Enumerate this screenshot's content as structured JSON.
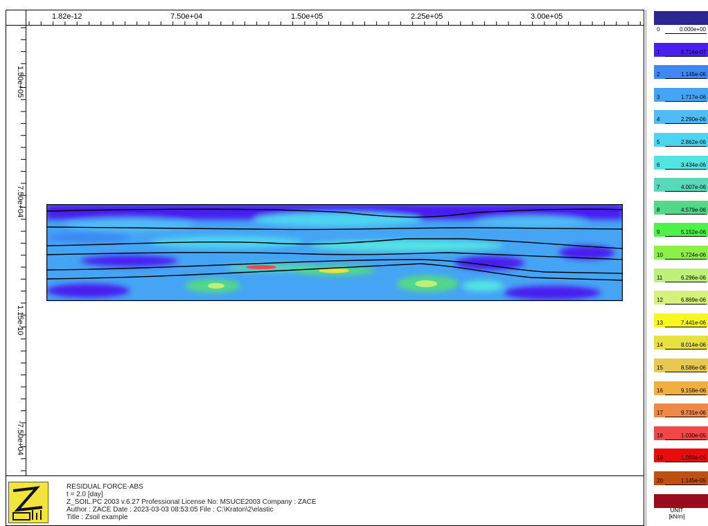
{
  "window": {
    "title": "Zsoil example"
  },
  "x_axis": {
    "ticks": [
      "1.82e-12",
      "7.50e+04",
      "1.50e+05",
      "2.25e+05",
      "3.00e+05"
    ]
  },
  "y_axis": {
    "ticks": [
      "1.50e+05",
      "7.50e+04",
      "1.15e-10",
      "-7.50e+04"
    ]
  },
  "info": {
    "result": "RESIDUAL FORCE-ABS",
    "time": "t =  2.0 [day]",
    "program": "Z_SOIL.PC 2003 v.6.27 Professional    License No: MSUCE2003    Company : ZACE",
    "author": "Author : ZACE    Date : 2023-03-03  08:53:05    File : C:\\Kraton\\2\\elastic",
    "title": "Title : Zsoil example"
  },
  "legend": {
    "entries": [
      {
        "index": "0",
        "value": "0.000e+00",
        "color": "#2a2890"
      },
      {
        "index": "1",
        "value": "5.724e-07",
        "color": "#4a1ff0"
      },
      {
        "index": "2",
        "value": "1.145e-06",
        "color": "#3e88f2"
      },
      {
        "index": "3",
        "value": "1.717e-06",
        "color": "#45a4f4"
      },
      {
        "index": "4",
        "value": "2.290e-06",
        "color": "#4fbcf4"
      },
      {
        "index": "5",
        "value": "2.862e-06",
        "color": "#4dd4f0"
      },
      {
        "index": "6",
        "value": "3.434e-06",
        "color": "#52e4e2"
      },
      {
        "index": "7",
        "value": "4.007e-06",
        "color": "#58d8b8"
      },
      {
        "index": "8",
        "value": "4.579e-06",
        "color": "#52d888"
      },
      {
        "index": "9",
        "value": "5.152e-06",
        "color": "#4ef04a"
      },
      {
        "index": "10",
        "value": "5.724e-06",
        "color": "#8cf046"
      },
      {
        "index": "11",
        "value": "6.296e-06",
        "color": "#bcf07a"
      },
      {
        "index": "12",
        "value": "6.869e-06",
        "color": "#d6f07c"
      },
      {
        "index": "13",
        "value": "7.441e-06",
        "color": "#f8f820"
      },
      {
        "index": "14",
        "value": "8.014e-06",
        "color": "#e8e040"
      },
      {
        "index": "15",
        "value": "8.586e-06",
        "color": "#e8c850"
      },
      {
        "index": "16",
        "value": "9.158e-06",
        "color": "#f0b040"
      },
      {
        "index": "17",
        "value": "9.731e-06",
        "color": "#f08848"
      },
      {
        "index": "18",
        "value": "1.030e-05",
        "color": "#f04848"
      },
      {
        "index": "19",
        "value": "1.088e-05",
        "color": "#e80c0c"
      },
      {
        "index": "20",
        "value": "1.145e-05",
        "color": "#c05010"
      },
      {
        "index": "",
        "value": "",
        "color": "#9a0c1c"
      }
    ],
    "unit_line1": "UNIT",
    "unit_line2": "[kN/m]"
  },
  "logo": {
    "icon": "zsoil-logo-icon"
  }
}
